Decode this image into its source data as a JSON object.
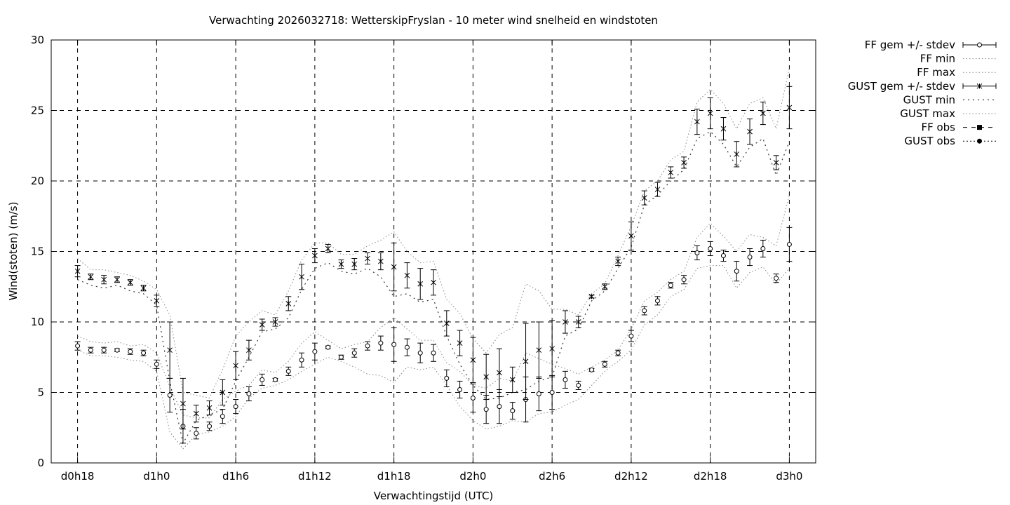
{
  "chart_data": {
    "type": "line",
    "title": "Verwachting 2026032718: WetterskipFryslan - 10 meter wind snelheid en windstoten",
    "xlabel": "Verwachtingstijd (UTC)",
    "ylabel": "Wind(stoten) (m/s)",
    "xlim": [
      16,
      74
    ],
    "ylim": [
      0,
      30
    ],
    "x_ticks": [
      {
        "x": 18,
        "label": "d0h18"
      },
      {
        "x": 24,
        "label": "d1h0"
      },
      {
        "x": 30,
        "label": "d1h6"
      },
      {
        "x": 36,
        "label": "d1h12"
      },
      {
        "x": 42,
        "label": "d1h18"
      },
      {
        "x": 48,
        "label": "d2h0"
      },
      {
        "x": 54,
        "label": "d2h6"
      },
      {
        "x": 60,
        "label": "d2h12"
      },
      {
        "x": 66,
        "label": "d2h18"
      },
      {
        "x": 72,
        "label": "d3h0"
      }
    ],
    "y_ticks": [
      0,
      5,
      10,
      15,
      20,
      25,
      30
    ],
    "grid": true,
    "legend_position": "outside-right",
    "legend": [
      "FF gem +/- stdev",
      "FF min",
      "FF max",
      "GUST gem +/- stdev",
      "GUST min",
      "GUST max",
      "FF obs",
      "GUST obs"
    ],
    "x": [
      18,
      19,
      20,
      21,
      22,
      23,
      24,
      25,
      26,
      27,
      28,
      29,
      30,
      31,
      32,
      33,
      34,
      35,
      36,
      37,
      38,
      39,
      40,
      41,
      42,
      43,
      44,
      45,
      46,
      47,
      48,
      49,
      50,
      51,
      52,
      53,
      54,
      55,
      56,
      57,
      58,
      59,
      60,
      61,
      62,
      63,
      64,
      65,
      66,
      67,
      68,
      69,
      70,
      71,
      72
    ],
    "ff_mean": [
      8.3,
      8.0,
      8.0,
      8.0,
      7.9,
      7.8,
      7.0,
      4.8,
      2.6,
      2.1,
      2.6,
      3.3,
      4.0,
      4.9,
      5.9,
      5.9,
      6.5,
      7.3,
      7.9,
      8.2,
      7.5,
      7.8,
      8.3,
      8.5,
      8.4,
      8.2,
      7.8,
      7.8,
      6.0,
      5.2,
      4.6,
      3.8,
      4.0,
      3.7,
      4.5,
      4.9,
      5.0,
      5.9,
      5.5,
      6.6,
      7.0,
      7.8,
      9.0,
      10.8,
      11.5,
      12.6,
      13.0,
      14.9,
      15.2,
      14.7,
      13.6,
      14.6,
      15.2,
      13.1,
      15.5
    ],
    "ff_stdev": [
      0.3,
      0.2,
      0.2,
      0.1,
      0.2,
      0.2,
      0.3,
      1.2,
      1.2,
      0.4,
      0.3,
      0.5,
      0.5,
      0.5,
      0.4,
      0.1,
      0.3,
      0.5,
      0.6,
      0.1,
      0.15,
      0.3,
      0.3,
      0.5,
      1.2,
      0.6,
      0.7,
      0.6,
      0.6,
      0.6,
      1.0,
      1.0,
      1.2,
      0.6,
      1.6,
      1.2,
      1.2,
      0.6,
      0.3,
      0.1,
      0.2,
      0.2,
      0.4,
      0.3,
      0.3,
      0.2,
      0.3,
      0.5,
      0.5,
      0.4,
      0.7,
      0.6,
      0.6,
      0.3,
      1.2
    ],
    "ff_min": [
      8.0,
      7.6,
      7.6,
      7.5,
      7.3,
      7.2,
      6.5,
      2.2,
      1.0,
      2.0,
      2.2,
      2.6,
      3.3,
      4.6,
      5.3,
      5.5,
      5.9,
      6.5,
      7.0,
      7.5,
      7.2,
      6.8,
      6.3,
      6.2,
      5.7,
      6.8,
      6.6,
      6.8,
      5.5,
      4.0,
      3.0,
      2.4,
      2.6,
      3.0,
      2.9,
      3.5,
      3.6,
      4.1,
      4.5,
      5.5,
      6.5,
      7.2,
      8.0,
      9.8,
      10.5,
      11.8,
      12.3,
      13.8,
      14.0,
      14.0,
      12.4,
      13.5,
      13.9,
      12.7,
      13.8
    ],
    "ff_max": [
      9.0,
      8.6,
      8.5,
      8.6,
      8.3,
      8.4,
      7.8,
      5.4,
      3.4,
      3.2,
      3.2,
      4.5,
      5.1,
      5.5,
      6.6,
      6.4,
      7.2,
      8.5,
      9.3,
      8.7,
      8.1,
      8.4,
      8.6,
      9.6,
      10.3,
      9.5,
      8.7,
      8.7,
      7.1,
      6.5,
      5.5,
      5.3,
      6.0,
      5.8,
      7.8,
      7.4,
      7.0,
      6.7,
      6.3,
      6.8,
      7.3,
      8.0,
      9.5,
      11.5,
      12.1,
      13.0,
      13.6,
      16.0,
      17.0,
      16.1,
      15.0,
      16.2,
      16.0,
      15.4,
      19.0
    ],
    "gust_mean": [
      13.6,
      13.2,
      13.0,
      13.0,
      12.8,
      12.4,
      11.5,
      8.0,
      4.2,
      3.5,
      3.9,
      5.0,
      6.9,
      8.0,
      9.8,
      10.0,
      11.3,
      13.2,
      14.7,
      15.2,
      14.1,
      14.1,
      14.5,
      14.3,
      13.9,
      13.3,
      12.7,
      12.8,
      9.9,
      8.5,
      7.3,
      6.1,
      6.4,
      5.9,
      7.2,
      8.0,
      8.1,
      10.0,
      10.0,
      11.8,
      12.5,
      14.3,
      16.1,
      18.8,
      19.4,
      20.6,
      21.3,
      24.2,
      24.8,
      23.7,
      21.9,
      23.5,
      24.8,
      21.3,
      25.2
    ],
    "gust_stdev": [
      0.4,
      0.2,
      0.3,
      0.2,
      0.2,
      0.2,
      0.4,
      2.0,
      1.8,
      0.6,
      0.5,
      0.9,
      1.0,
      0.7,
      0.4,
      0.3,
      0.5,
      0.9,
      0.5,
      0.3,
      0.3,
      0.4,
      0.4,
      0.6,
      1.7,
      0.9,
      1.1,
      0.9,
      0.9,
      0.9,
      1.6,
      1.6,
      1.7,
      0.9,
      2.7,
      2.0,
      2.0,
      0.8,
      0.4,
      0.1,
      0.2,
      0.3,
      1.0,
      0.5,
      0.5,
      0.4,
      0.4,
      0.9,
      1.1,
      0.8,
      0.9,
      0.9,
      0.8,
      0.5,
      1.5
    ],
    "gust_min": [
      13.0,
      12.6,
      12.4,
      12.6,
      12.2,
      12.0,
      11.2,
      5.8,
      1.4,
      3.0,
      3.4,
      3.8,
      5.8,
      7.5,
      9.3,
      9.5,
      10.3,
      12.3,
      13.8,
      14.2,
      13.6,
      13.4,
      13.8,
      13.2,
      11.8,
      12.0,
      11.4,
      11.6,
      9.0,
      7.0,
      5.5,
      4.5,
      4.6,
      5.0,
      5.2,
      5.8,
      6.1,
      9.0,
      9.5,
      11.5,
      12.2,
      13.8,
      15.3,
      18.3,
      19.0,
      20.0,
      20.8,
      23.0,
      23.5,
      22.6,
      21.0,
      22.4,
      23.0,
      20.4,
      22.8
    ],
    "gust_max": [
      14.5,
      13.7,
      13.7,
      13.5,
      13.3,
      12.9,
      12.3,
      10.5,
      5.0,
      4.8,
      4.6,
      6.6,
      9.0,
      10.0,
      10.8,
      10.5,
      12.2,
      14.4,
      15.6,
      15.6,
      14.8,
      14.8,
      15.4,
      15.8,
      16.4,
      15.0,
      14.2,
      14.3,
      11.6,
      10.6,
      8.8,
      7.8,
      9.1,
      9.6,
      12.7,
      12.2,
      10.9,
      10.9,
      10.5,
      12.0,
      12.7,
      14.7,
      16.8,
      19.3,
      20.0,
      21.5,
      22.1,
      25.6,
      26.5,
      25.5,
      23.7,
      25.5,
      25.9,
      23.7,
      28.0
    ]
  }
}
